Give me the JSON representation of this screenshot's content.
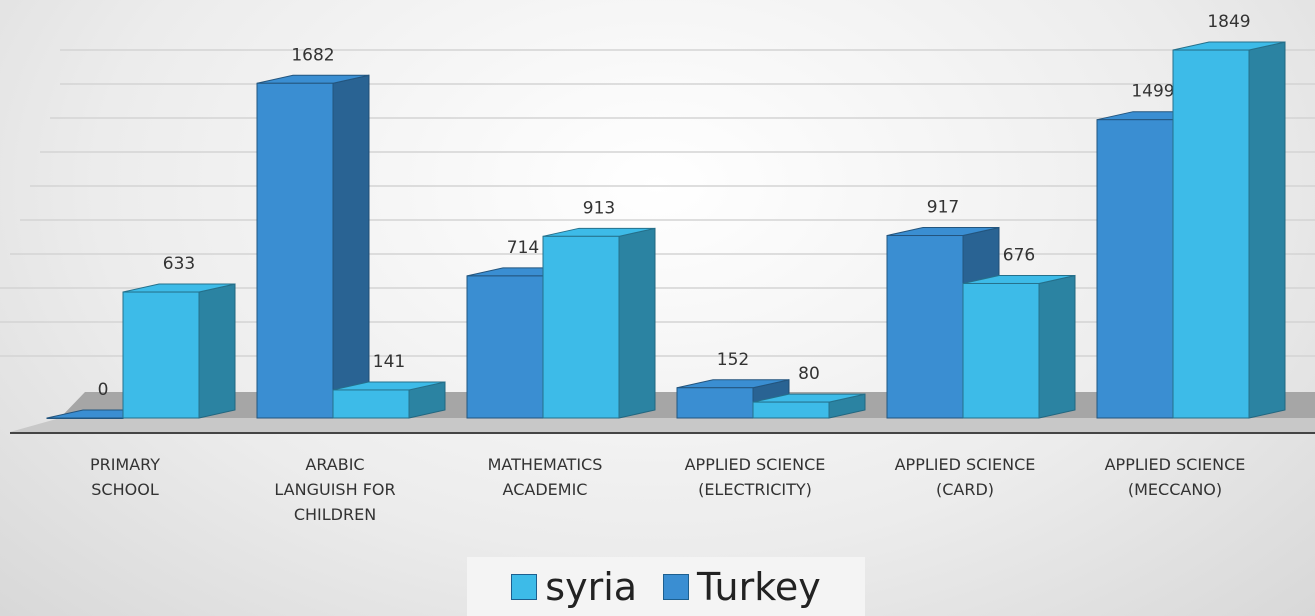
{
  "chart_data": {
    "type": "bar3d",
    "categories": [
      "PRIMARY\nSCHOOL",
      "ARABIC\nLANGUISH FOR\nCHILDREN",
      "MATHEMATICS\nACADEMIC",
      "APPLIED SCIENCE\n(ELECTRICITY)",
      "APPLIED SCIENCE\n(CARD)",
      "APPLIED SCIENCE\n(MECCANO)"
    ],
    "series": [
      {
        "name": "syria",
        "color": "#3dbbe8",
        "values": [
          633,
          141,
          913,
          80,
          676,
          1849
        ]
      },
      {
        "name": "Turkey",
        "color": "#3a8ed2",
        "values": [
          0,
          1682,
          714,
          152,
          917,
          1499
        ]
      }
    ],
    "ylim": [
      0,
      2000
    ]
  }
}
